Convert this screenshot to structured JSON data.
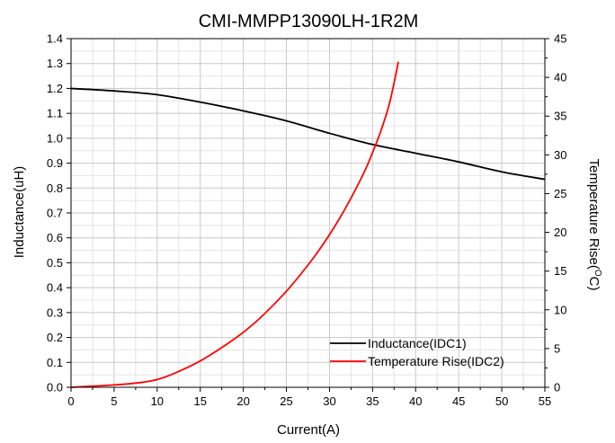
{
  "chart_data": {
    "type": "line",
    "title": "CMI-MMPP13090LH-1R2M",
    "xlabel": "Current(A)",
    "ylabel_left": "Inductance(uH)",
    "ylabel_right_prefix": "Temperature Rise(",
    "ylabel_right_degree": "O",
    "ylabel_right_suffix": "C)",
    "xlim": [
      0,
      55
    ],
    "ylim_left": [
      0,
      1.4
    ],
    "ylim_right": [
      0,
      45
    ],
    "x_ticks": [
      "0",
      "5",
      "10",
      "15",
      "20",
      "25",
      "30",
      "35",
      "40",
      "45",
      "50",
      "55"
    ],
    "y_left_ticks": [
      "0.0",
      "0.1",
      "0.2",
      "0.3",
      "0.4",
      "0.5",
      "0.6",
      "0.7",
      "0.8",
      "0.9",
      "1.0",
      "1.1",
      "1.2",
      "1.3",
      "1.4"
    ],
    "y_right_ticks": [
      "0",
      "5",
      "10",
      "15",
      "20",
      "25",
      "30",
      "35",
      "40",
      "45"
    ],
    "grid": true,
    "legend_position": "bottom-right",
    "series": [
      {
        "name": "Inductance(IDC1)",
        "axis": "left",
        "color": "#000000",
        "x": [
          0,
          5,
          10,
          15,
          20,
          25,
          30,
          35,
          40,
          45,
          50,
          55
        ],
        "y": [
          1.2,
          1.19,
          1.175,
          1.145,
          1.11,
          1.07,
          1.02,
          0.975,
          0.94,
          0.905,
          0.865,
          0.835
        ]
      },
      {
        "name": "Temperature Rise(IDC2)",
        "axis": "right",
        "color": "#ff0000",
        "x": [
          0,
          5,
          8,
          10,
          12,
          15,
          18,
          20,
          22,
          25,
          28,
          30,
          32,
          34,
          35,
          36,
          37,
          38
        ],
        "y": [
          0,
          0.3,
          0.6,
          1.0,
          1.8,
          3.4,
          5.5,
          7.1,
          9.0,
          12.4,
          16.5,
          19.7,
          23.4,
          27.7,
          30.3,
          33.2,
          36.8,
          42
        ]
      }
    ]
  }
}
